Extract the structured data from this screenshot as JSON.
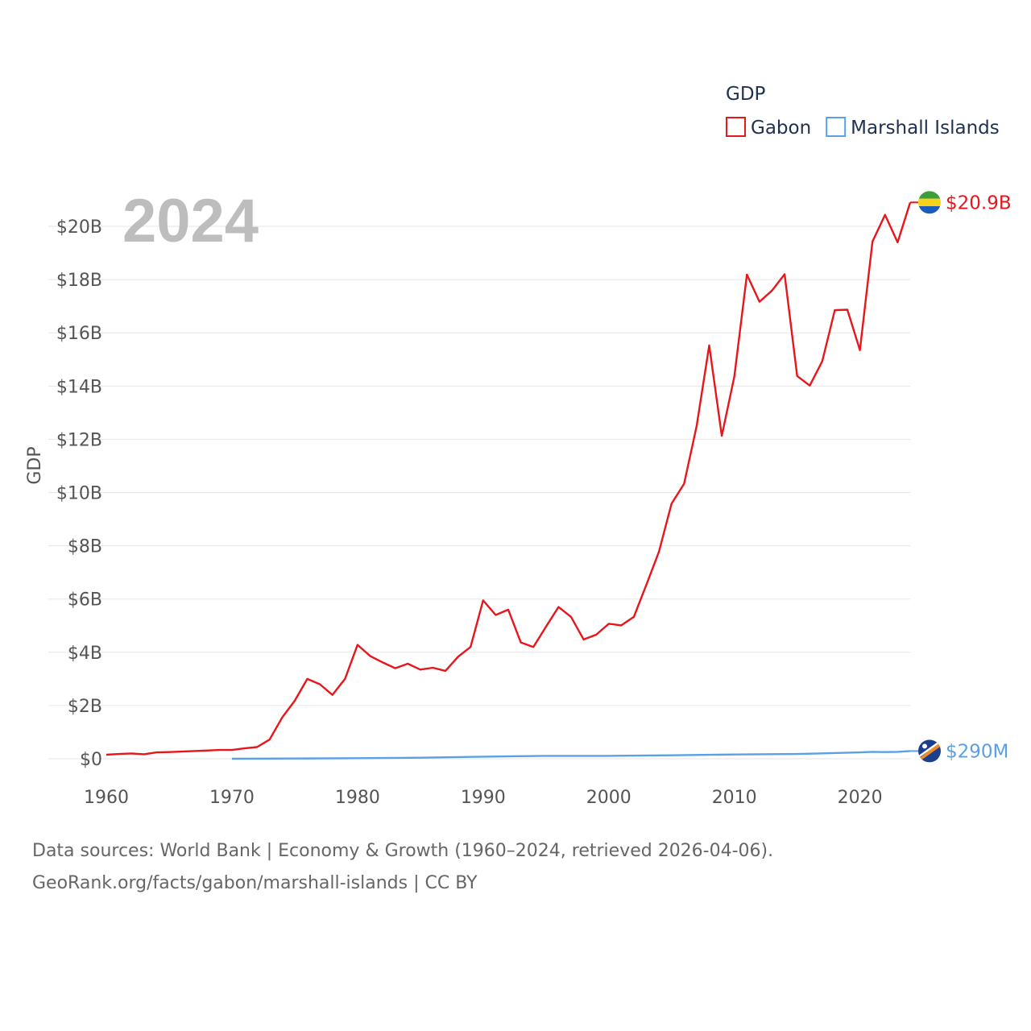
{
  "chart_data": {
    "type": "line",
    "year_label": "2024",
    "ylabel": "GDP",
    "legend": {
      "title": "GDP",
      "position": "top-right"
    },
    "ylim": [
      0,
      21
    ],
    "xlim": [
      1960,
      2024
    ],
    "y_ticks": [
      {
        "value": 0,
        "label": "$0"
      },
      {
        "value": 2,
        "label": "$2B"
      },
      {
        "value": 4,
        "label": "$4B"
      },
      {
        "value": 6,
        "label": "$6B"
      },
      {
        "value": 8,
        "label": "$8B"
      },
      {
        "value": 10,
        "label": "$10B"
      },
      {
        "value": 12,
        "label": "$12B"
      },
      {
        "value": 14,
        "label": "$14B"
      },
      {
        "value": 16,
        "label": "$16B"
      },
      {
        "value": 18,
        "label": "$18B"
      },
      {
        "value": 20,
        "label": "$20B"
      }
    ],
    "x_ticks": [
      {
        "value": 1960,
        "label": "1960"
      },
      {
        "value": 1970,
        "label": "1970"
      },
      {
        "value": 1980,
        "label": "1980"
      },
      {
        "value": 1990,
        "label": "1990"
      },
      {
        "value": 2000,
        "label": "2000"
      },
      {
        "value": 2010,
        "label": "2010"
      },
      {
        "value": 2020,
        "label": "2020"
      }
    ],
    "units": "billions USD",
    "series": [
      {
        "name": "Gabon",
        "color": "#e8151b",
        "end_label": "$20.9B",
        "flag": "gabon-flag",
        "flag_colors": [
          "#3a9e3a",
          "#f6d21a",
          "#1a5cb8"
        ],
        "x": [
          1960,
          1961,
          1962,
          1963,
          1964,
          1965,
          1966,
          1967,
          1968,
          1969,
          1970,
          1971,
          1972,
          1973,
          1974,
          1975,
          1976,
          1977,
          1978,
          1979,
          1980,
          1981,
          1982,
          1983,
          1984,
          1985,
          1986,
          1987,
          1988,
          1989,
          1990,
          1991,
          1992,
          1993,
          1994,
          1995,
          1996,
          1997,
          1998,
          1999,
          2000,
          2001,
          2002,
          2003,
          2004,
          2005,
          2006,
          2007,
          2008,
          2009,
          2010,
          2011,
          2012,
          2013,
          2014,
          2015,
          2016,
          2017,
          2018,
          2019,
          2020,
          2021,
          2022,
          2023,
          2024
        ],
        "values": [
          0.15,
          0.18,
          0.2,
          0.17,
          0.24,
          0.25,
          0.27,
          0.29,
          0.31,
          0.33,
          0.33,
          0.39,
          0.44,
          0.72,
          1.55,
          2.18,
          3.0,
          2.8,
          2.4,
          3.0,
          4.28,
          3.86,
          3.62,
          3.4,
          3.57,
          3.35,
          3.42,
          3.3,
          3.83,
          4.2,
          5.95,
          5.4,
          5.6,
          4.37,
          4.2,
          4.96,
          5.7,
          5.33,
          4.48,
          4.66,
          5.07,
          5.01,
          5.33,
          6.54,
          7.78,
          9.58,
          10.33,
          12.5,
          15.53,
          12.13,
          14.36,
          18.19,
          17.17,
          17.59,
          18.2,
          14.38,
          14.02,
          14.93,
          16.85,
          16.87,
          15.35,
          19.43,
          20.43,
          19.4,
          20.9
        ]
      },
      {
        "name": "Marshall Islands",
        "color": "#5aa0e6",
        "end_label": "$290M",
        "flag": "marshall-islands-flag",
        "flag_colors": [
          "#1a3f8f",
          "#f08a24",
          "#ffffff"
        ],
        "x": [
          1970,
          1975,
          1980,
          1985,
          1990,
          1995,
          2000,
          2005,
          2010,
          2015,
          2020,
          2021,
          2022,
          2023,
          2024
        ],
        "values": [
          0.0,
          0.01,
          0.02,
          0.04,
          0.08,
          0.11,
          0.11,
          0.13,
          0.16,
          0.18,
          0.24,
          0.26,
          0.25,
          0.26,
          0.29
        ]
      }
    ]
  },
  "footer": {
    "line1": "Data sources: World Bank | Economy & Growth (1960–2024, retrieved 2026-04-06).",
    "line2": "GeoRank.org/facts/gabon/marshall-islands | CC BY"
  }
}
